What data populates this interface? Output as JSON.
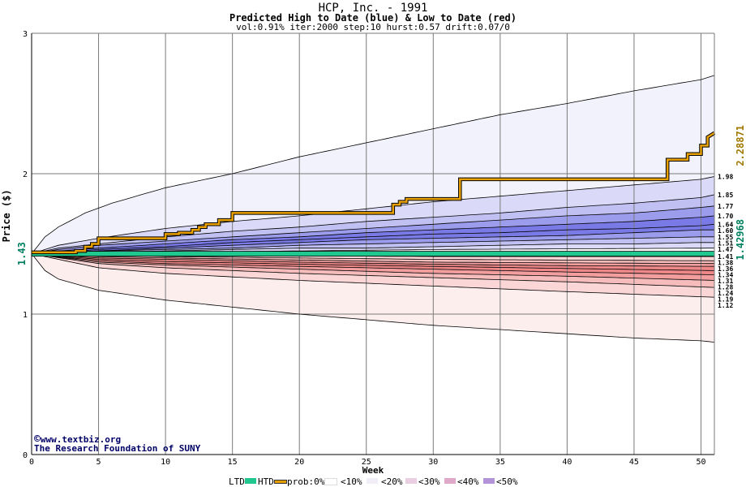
{
  "header": {
    "title": "HCP, Inc. - 1991",
    "subtitle": "Predicted High to Date (blue) &  Low to Date (red)",
    "params": "vol:0.91% iter:2000 step:10 hurst:0.57 drift:0.07/0"
  },
  "credit": {
    "copyright_symbol": "©",
    "site": "www.textbiz.org",
    "org": "The Research Foundation of SUNY"
  },
  "chart_data": {
    "type": "area",
    "title": "HCP, Inc. - 1991",
    "xlabel": "Week",
    "ylabel": "Price ($)",
    "xlim": [
      0,
      51
    ],
    "ylim": [
      0,
      3
    ],
    "x_ticks": [
      0,
      5,
      10,
      15,
      20,
      25,
      30,
      35,
      40,
      45,
      50
    ],
    "y_ticks": [
      0,
      1,
      2,
      3
    ],
    "grid": true,
    "start_price_label": "1.43",
    "start_price": 1.43,
    "last_high_label": "2.28871",
    "last_high": 2.28871,
    "last_low_label": "1.42968",
    "last_low": 1.42968,
    "colors": {
      "high_band_10": "#f2f2fc",
      "high_band_20": "#dadaf8",
      "high_band_30": "#c0c0f2",
      "high_band_40": "#9c9cec",
      "high_band_50": "#7a7ae6",
      "low_band_10": "#fdeeee",
      "low_band_20": "#fad6d6",
      "low_band_30": "#f6bcbc",
      "low_band_40": "#f29e9e",
      "low_band_50": "#ee8888",
      "htd": "#e8a000",
      "ltd": "#20c890",
      "start_label": "#008060",
      "last_high_label": "#a07800"
    },
    "high_percentile_curves": [
      {
        "x": [
          0,
          1,
          2,
          4,
          6,
          10,
          15,
          20,
          25,
          30,
          35,
          40,
          45,
          50,
          51
        ],
        "values": [
          1.43,
          1.55,
          1.62,
          1.72,
          1.79,
          1.9,
          2.0,
          2.12,
          2.22,
          2.32,
          2.42,
          2.5,
          2.59,
          2.67,
          2.7
        ]
      },
      {
        "x": [
          0,
          2,
          5,
          10,
          15,
          20,
          25,
          30,
          35,
          40,
          45,
          50,
          51
        ],
        "values": [
          1.43,
          1.49,
          1.54,
          1.61,
          1.66,
          1.7,
          1.75,
          1.8,
          1.84,
          1.88,
          1.92,
          1.96,
          1.98
        ]
      },
      {
        "x": [
          0,
          2,
          5,
          10,
          15,
          20,
          25,
          30,
          35,
          40,
          45,
          50,
          51
        ],
        "values": [
          1.43,
          1.47,
          1.5,
          1.55,
          1.59,
          1.62,
          1.66,
          1.69,
          1.72,
          1.76,
          1.79,
          1.83,
          1.85
        ]
      },
      {
        "x": [
          0,
          2,
          5,
          10,
          15,
          20,
          25,
          30,
          35,
          40,
          45,
          50,
          51
        ],
        "values": [
          1.43,
          1.46,
          1.49,
          1.52,
          1.55,
          1.58,
          1.61,
          1.64,
          1.67,
          1.7,
          1.72,
          1.76,
          1.77
        ]
      },
      {
        "x": [
          0,
          2,
          5,
          10,
          15,
          20,
          25,
          30,
          35,
          40,
          45,
          50,
          51
        ],
        "values": [
          1.43,
          1.45,
          1.47,
          1.5,
          1.53,
          1.55,
          1.58,
          1.6,
          1.62,
          1.64,
          1.66,
          1.69,
          1.7
        ]
      },
      {
        "x": [
          0,
          2,
          5,
          10,
          15,
          20,
          25,
          30,
          35,
          40,
          45,
          50,
          51
        ],
        "values": [
          1.43,
          1.44,
          1.46,
          1.48,
          1.51,
          1.53,
          1.55,
          1.57,
          1.58,
          1.6,
          1.61,
          1.63,
          1.64
        ]
      },
      {
        "x": [
          0,
          2,
          5,
          10,
          15,
          20,
          25,
          30,
          35,
          40,
          45,
          50,
          51
        ],
        "values": [
          1.43,
          1.44,
          1.45,
          1.47,
          1.49,
          1.51,
          1.53,
          1.54,
          1.55,
          1.56,
          1.58,
          1.6,
          1.6
        ]
      },
      {
        "x": [
          0,
          2,
          5,
          10,
          15,
          20,
          25,
          30,
          35,
          40,
          45,
          50,
          51
        ],
        "values": [
          1.43,
          1.44,
          1.45,
          1.46,
          1.47,
          1.49,
          1.5,
          1.51,
          1.52,
          1.53,
          1.54,
          1.55,
          1.55
        ]
      },
      {
        "x": [
          0,
          2,
          5,
          10,
          15,
          20,
          25,
          30,
          35,
          40,
          45,
          50,
          51
        ],
        "values": [
          1.43,
          1.43,
          1.44,
          1.45,
          1.46,
          1.47,
          1.47,
          1.48,
          1.49,
          1.5,
          1.5,
          1.51,
          1.51
        ]
      },
      {
        "x": [
          0,
          5,
          10,
          20,
          30,
          40,
          51
        ],
        "values": [
          1.43,
          1.435,
          1.44,
          1.45,
          1.46,
          1.465,
          1.47
        ]
      }
    ],
    "low_percentile_curves": [
      {
        "x": [
          0,
          5,
          10,
          20,
          30,
          40,
          51
        ],
        "values": [
          1.43,
          1.425,
          1.42,
          1.415,
          1.41,
          1.41,
          1.41
        ]
      },
      {
        "x": [
          0,
          5,
          10,
          20,
          30,
          40,
          51
        ],
        "values": [
          1.43,
          1.42,
          1.41,
          1.4,
          1.39,
          1.385,
          1.38
        ]
      },
      {
        "x": [
          0,
          5,
          10,
          20,
          30,
          40,
          51
        ],
        "values": [
          1.43,
          1.41,
          1.4,
          1.385,
          1.37,
          1.365,
          1.36
        ]
      },
      {
        "x": [
          0,
          5,
          10,
          20,
          30,
          40,
          51
        ],
        "values": [
          1.43,
          1.4,
          1.39,
          1.37,
          1.355,
          1.345,
          1.34
        ]
      },
      {
        "x": [
          0,
          5,
          10,
          20,
          30,
          40,
          51
        ],
        "values": [
          1.43,
          1.39,
          1.375,
          1.355,
          1.34,
          1.325,
          1.31
        ]
      },
      {
        "x": [
          0,
          5,
          10,
          20,
          30,
          40,
          51
        ],
        "values": [
          1.43,
          1.38,
          1.36,
          1.34,
          1.32,
          1.3,
          1.28
        ]
      },
      {
        "x": [
          0,
          5,
          10,
          20,
          30,
          40,
          51
        ],
        "values": [
          1.43,
          1.37,
          1.35,
          1.32,
          1.29,
          1.27,
          1.24
        ]
      },
      {
        "x": [
          0,
          5,
          10,
          20,
          30,
          40,
          51
        ],
        "values": [
          1.43,
          1.36,
          1.33,
          1.29,
          1.26,
          1.23,
          1.19
        ]
      },
      {
        "x": [
          0,
          5,
          10,
          20,
          30,
          40,
          51
        ],
        "values": [
          1.43,
          1.33,
          1.29,
          1.24,
          1.2,
          1.16,
          1.12
        ]
      },
      {
        "x": [
          0,
          1,
          2,
          5,
          10,
          15,
          20,
          25,
          30,
          35,
          40,
          45,
          50,
          51
        ],
        "values": [
          1.43,
          1.31,
          1.25,
          1.17,
          1.1,
          1.05,
          1.0,
          0.96,
          0.92,
          0.89,
          0.86,
          0.83,
          0.81,
          0.8
        ]
      }
    ],
    "band_percent_edges": [
      "<10%",
      "<20%",
      "<30%",
      "<40%",
      "<50%",
      "<40%",
      "<30%",
      "<20%",
      "<10%"
    ],
    "high_to_date": {
      "name": "HTD",
      "x": [
        0,
        3.3,
        3.3,
        4,
        4,
        4.5,
        4.5,
        5,
        5,
        10,
        10,
        11,
        11,
        12,
        12,
        12.5,
        12.5,
        13,
        13,
        14,
        14,
        15,
        15,
        27,
        27,
        27.5,
        27.5,
        28,
        28,
        32,
        32,
        47.5,
        47.5,
        49,
        49,
        50,
        50,
        50.5,
        50.5,
        51
      ],
      "values": [
        1.44,
        1.44,
        1.45,
        1.45,
        1.48,
        1.48,
        1.5,
        1.5,
        1.54,
        1.54,
        1.57,
        1.57,
        1.58,
        1.58,
        1.6,
        1.6,
        1.62,
        1.62,
        1.64,
        1.64,
        1.67,
        1.67,
        1.72,
        1.72,
        1.78,
        1.78,
        1.8,
        1.8,
        1.82,
        1.82,
        1.96,
        1.96,
        2.1,
        2.1,
        2.14,
        2.14,
        2.2,
        2.2,
        2.26,
        2.29
      ]
    },
    "low_to_date": {
      "name": "LTD",
      "x": [
        0,
        51
      ],
      "values": [
        1.43,
        1.43
      ]
    },
    "right_labels": [
      "1.98",
      "1.85",
      "1.77",
      "1.70",
      "1.64",
      "1.60",
      "1.55",
      "1.51",
      "1.47",
      "1.41",
      "1.38",
      "1.36",
      "1.34",
      "1.31",
      "1.28",
      "1.24",
      "1.19",
      "1.12"
    ],
    "legend": {
      "ltd": "LTD",
      "htd": "HTD",
      "prob": "prob:0%",
      "items": [
        "<10%",
        "<20%",
        "<30%",
        "<40%",
        "<50%"
      ]
    }
  }
}
